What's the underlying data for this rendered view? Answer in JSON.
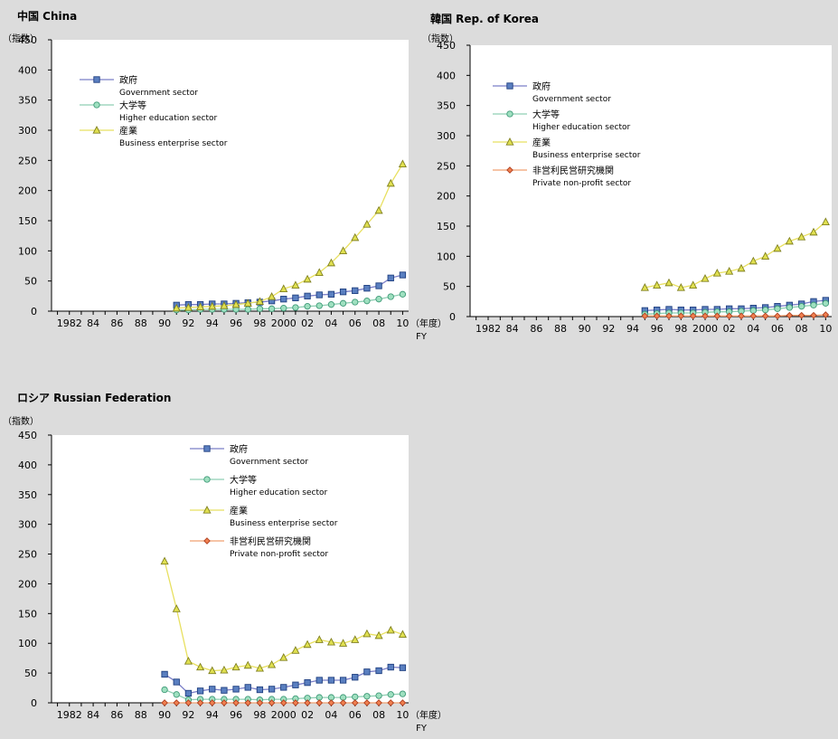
{
  "chart_data": [
    {
      "type": "line",
      "title": "中国 China",
      "ylabel": "（指数）",
      "xlabel_suffix": "（年度）",
      "xlabel_unit": "FY",
      "ylim": [
        0,
        450
      ],
      "yticks": [
        0,
        50,
        100,
        150,
        200,
        250,
        300,
        350,
        400,
        450
      ],
      "xlim": [
        1980.5,
        2010.5
      ],
      "xtick_labels": [
        {
          "x": 1982,
          "label": "1982"
        },
        {
          "x": 1984,
          "label": "84"
        },
        {
          "x": 1986,
          "label": "86"
        },
        {
          "x": 1988,
          "label": "88"
        },
        {
          "x": 1990,
          "label": "90"
        },
        {
          "x": 1992,
          "label": "92"
        },
        {
          "x": 1994,
          "label": "94"
        },
        {
          "x": 1996,
          "label": "96"
        },
        {
          "x": 1998,
          "label": "98"
        },
        {
          "x": 2000,
          "label": "2000"
        },
        {
          "x": 2002,
          "label": "02"
        },
        {
          "x": 2004,
          "label": "04"
        },
        {
          "x": 2006,
          "label": "06"
        },
        {
          "x": 2008,
          "label": "08"
        },
        {
          "x": 2010,
          "label": "10"
        }
      ],
      "legend_position": "top-left",
      "series": [
        {
          "name": "政府",
          "name_en": "Government sector",
          "color": "#7b7fc8",
          "marker_fill": "#5a7fc0",
          "marker_stroke": "#1f3f80",
          "marker": "square",
          "x": [
            1991,
            1992,
            1993,
            1994,
            1995,
            1996,
            1997,
            1998,
            1999,
            2000,
            2001,
            2002,
            2003,
            2004,
            2005,
            2006,
            2007,
            2008,
            2009,
            2010
          ],
          "values": [
            10,
            11,
            11,
            12,
            12,
            13,
            14,
            15,
            17,
            20,
            22,
            25,
            27,
            28,
            32,
            34,
            38,
            42,
            55,
            60
          ]
        },
        {
          "name": "大学等",
          "name_en": "Higher education sector",
          "color": "#8fcfb3",
          "marker_fill": "#9fe0c0",
          "marker_stroke": "#3f9a78",
          "marker": "circle",
          "x": [
            1991,
            1992,
            1993,
            1994,
            1995,
            1996,
            1997,
            1998,
            1999,
            2000,
            2001,
            2002,
            2003,
            2004,
            2005,
            2006,
            2007,
            2008,
            2009,
            2010
          ],
          "values": [
            2,
            2,
            3,
            3,
            3,
            3,
            3,
            4,
            4,
            5,
            6,
            8,
            9,
            11,
            13,
            15,
            17,
            20,
            24,
            28
          ]
        },
        {
          "name": "産業",
          "name_en": "Business enterprise sector",
          "color": "#e8e060",
          "marker_fill": "#e0e050",
          "marker_stroke": "#808020",
          "marker": "triangle",
          "x": [
            1991,
            1992,
            1993,
            1994,
            1995,
            1996,
            1997,
            1998,
            1999,
            2000,
            2001,
            2002,
            2003,
            2004,
            2005,
            2006,
            2007,
            2008,
            2009,
            2010
          ],
          "values": [
            5,
            6,
            7,
            8,
            9,
            11,
            13,
            16,
            24,
            37,
            43,
            53,
            64,
            80,
            100,
            122,
            144,
            167,
            212,
            244
          ]
        }
      ]
    },
    {
      "type": "line",
      "title": "韓国 Rep. of Korea",
      "ylabel": "（指数）",
      "xlabel_suffix": "（年度）",
      "xlabel_unit": "FY",
      "ylim": [
        0,
        450
      ],
      "yticks": [
        0,
        50,
        100,
        150,
        200,
        250,
        300,
        350,
        400,
        450
      ],
      "xlim": [
        1980.5,
        2010.5
      ],
      "xtick_labels": [
        {
          "x": 1982,
          "label": "1982"
        },
        {
          "x": 1984,
          "label": "84"
        },
        {
          "x": 1986,
          "label": "86"
        },
        {
          "x": 1988,
          "label": "88"
        },
        {
          "x": 1990,
          "label": "90"
        },
        {
          "x": 1992,
          "label": "92"
        },
        {
          "x": 1994,
          "label": "94"
        },
        {
          "x": 1996,
          "label": "96"
        },
        {
          "x": 1998,
          "label": "98"
        },
        {
          "x": 2000,
          "label": "2000"
        },
        {
          "x": 2002,
          "label": "02"
        },
        {
          "x": 2004,
          "label": "04"
        },
        {
          "x": 2006,
          "label": "06"
        },
        {
          "x": 2008,
          "label": "08"
        },
        {
          "x": 2010,
          "label": "10"
        }
      ],
      "legend_position": "top-left",
      "series": [
        {
          "name": "政府",
          "name_en": "Government sector",
          "color": "#7b7fc8",
          "marker_fill": "#5a7fc0",
          "marker_stroke": "#1f3f80",
          "marker": "square",
          "x": [
            1995,
            1996,
            1997,
            1998,
            1999,
            2000,
            2001,
            2002,
            2003,
            2004,
            2005,
            2006,
            2007,
            2008,
            2009,
            2010
          ],
          "values": [
            10,
            11,
            12,
            11,
            11,
            12,
            12,
            13,
            13,
            14,
            15,
            17,
            19,
            21,
            25,
            27
          ]
        },
        {
          "name": "大学等",
          "name_en": "Higher education sector",
          "color": "#8fcfb3",
          "marker_fill": "#9fe0c0",
          "marker_stroke": "#3f9a78",
          "marker": "circle",
          "x": [
            1995,
            1996,
            1997,
            1998,
            1999,
            2000,
            2001,
            2002,
            2003,
            2004,
            2005,
            2006,
            2007,
            2008,
            2009,
            2010
          ],
          "values": [
            4,
            5,
            6,
            6,
            6,
            7,
            8,
            8,
            9,
            10,
            11,
            13,
            15,
            17,
            19,
            22
          ]
        },
        {
          "name": "産業",
          "name_en": "Business enterprise sector",
          "color": "#e8e060",
          "marker_fill": "#e0e050",
          "marker_stroke": "#808020",
          "marker": "triangle",
          "x": [
            1995,
            1996,
            1997,
            1998,
            1999,
            2000,
            2001,
            2002,
            2003,
            2004,
            2005,
            2006,
            2007,
            2008,
            2009,
            2010
          ],
          "values": [
            48,
            52,
            56,
            48,
            52,
            63,
            72,
            75,
            80,
            92,
            100,
            113,
            125,
            132,
            140,
            157
          ]
        },
        {
          "name": "非営利民営研究機関",
          "name_en": "Private non-profit sector",
          "color": "#f0a070",
          "marker_fill": "#f08050",
          "marker_stroke": "#b04020",
          "marker": "diamond",
          "x": [
            1995,
            1996,
            1997,
            1998,
            1999,
            2000,
            2001,
            2002,
            2003,
            2004,
            2005,
            2006,
            2007,
            2008,
            2009,
            2010
          ],
          "values": [
            1,
            1,
            1,
            1,
            1,
            1,
            1,
            1,
            1,
            1,
            1,
            1,
            2,
            2,
            2,
            3
          ]
        }
      ]
    },
    {
      "type": "line",
      "title": "ロシア Russian Federation",
      "ylabel": "（指数）",
      "xlabel_suffix": "（年度）",
      "xlabel_unit": "FY",
      "ylim": [
        0,
        450
      ],
      "yticks": [
        0,
        50,
        100,
        150,
        200,
        250,
        300,
        350,
        400,
        450
      ],
      "xlim": [
        1980.5,
        2010.5
      ],
      "xtick_labels": [
        {
          "x": 1982,
          "label": "1982"
        },
        {
          "x": 1984,
          "label": "84"
        },
        {
          "x": 1986,
          "label": "86"
        },
        {
          "x": 1988,
          "label": "88"
        },
        {
          "x": 1990,
          "label": "90"
        },
        {
          "x": 1992,
          "label": "92"
        },
        {
          "x": 1994,
          "label": "94"
        },
        {
          "x": 1996,
          "label": "96"
        },
        {
          "x": 1998,
          "label": "98"
        },
        {
          "x": 2000,
          "label": "2000"
        },
        {
          "x": 2002,
          "label": "02"
        },
        {
          "x": 2004,
          "label": "04"
        },
        {
          "x": 2006,
          "label": "06"
        },
        {
          "x": 2008,
          "label": "08"
        },
        {
          "x": 2010,
          "label": "10"
        }
      ],
      "legend_position": "top-right",
      "series": [
        {
          "name": "政府",
          "name_en": "Government sector",
          "color": "#7b7fc8",
          "marker_fill": "#5a7fc0",
          "marker_stroke": "#1f3f80",
          "marker": "square",
          "x": [
            1990,
            1991,
            1992,
            1993,
            1994,
            1995,
            1996,
            1997,
            1998,
            1999,
            2000,
            2001,
            2002,
            2003,
            2004,
            2005,
            2006,
            2007,
            2008,
            2009,
            2010
          ],
          "values": [
            48,
            35,
            16,
            20,
            23,
            21,
            23,
            26,
            22,
            23,
            26,
            30,
            34,
            38,
            38,
            38,
            43,
            52,
            54,
            60,
            59
          ]
        },
        {
          "name": "大学等",
          "name_en": "Higher education sector",
          "color": "#8fcfb3",
          "marker_fill": "#9fe0c0",
          "marker_stroke": "#3f9a78",
          "marker": "circle",
          "x": [
            1990,
            1991,
            1992,
            1993,
            1994,
            1995,
            1996,
            1997,
            1998,
            1999,
            2000,
            2001,
            2002,
            2003,
            2004,
            2005,
            2006,
            2007,
            2008,
            2009,
            2010
          ],
          "values": [
            22,
            14,
            5,
            6,
            6,
            6,
            6,
            6,
            5,
            6,
            6,
            7,
            8,
            9,
            9,
            9,
            10,
            11,
            12,
            14,
            15
          ]
        },
        {
          "name": "産業",
          "name_en": "Business enterprise sector",
          "color": "#e8e060",
          "marker_fill": "#e0e050",
          "marker_stroke": "#808020",
          "marker": "triangle",
          "x": [
            1990,
            1991,
            1992,
            1993,
            1994,
            1995,
            1996,
            1997,
            1998,
            1999,
            2000,
            2001,
            2002,
            2003,
            2004,
            2005,
            2006,
            2007,
            2008,
            2009,
            2010
          ],
          "values": [
            238,
            158,
            70,
            60,
            54,
            55,
            60,
            63,
            58,
            64,
            76,
            88,
            98,
            106,
            102,
            100,
            106,
            116,
            113,
            122,
            115
          ]
        },
        {
          "name": "非営利民営研究機関",
          "name_en": "Private non-profit sector",
          "color": "#f0a070",
          "marker_fill": "#f08050",
          "marker_stroke": "#b04020",
          "marker": "diamond",
          "x": [
            1990,
            1991,
            1992,
            1993,
            1994,
            1995,
            1996,
            1997,
            1998,
            1999,
            2000,
            2001,
            2002,
            2003,
            2004,
            2005,
            2006,
            2007,
            2008,
            2009,
            2010
          ],
          "values": [
            0,
            0,
            0,
            0,
            0,
            0,
            0,
            0,
            0,
            0,
            0,
            0,
            0,
            0,
            0,
            0,
            0,
            0,
            0,
            0,
            0
          ]
        }
      ]
    }
  ]
}
